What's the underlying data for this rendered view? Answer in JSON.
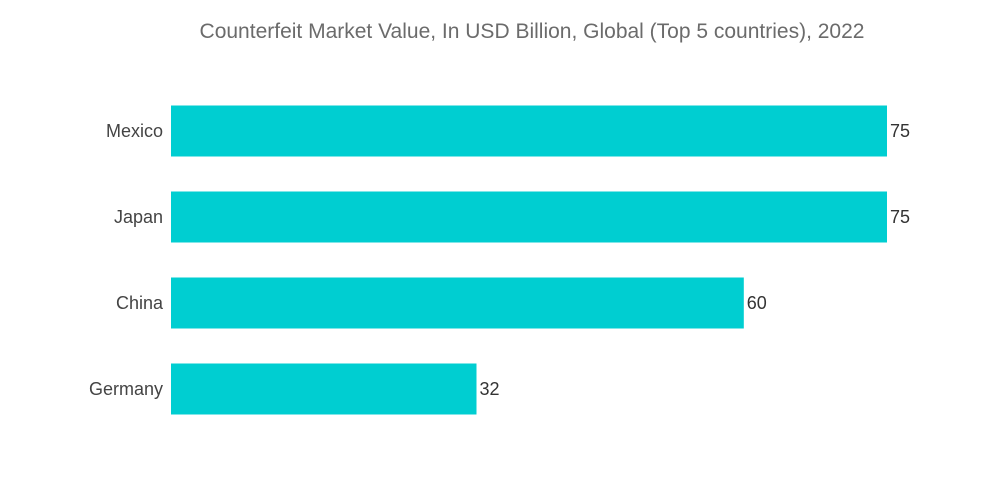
{
  "chart_data": {
    "type": "bar",
    "orientation": "horizontal",
    "title": "Counterfeit Market Value, In USD Billion, Global (Top 5 countries), 2022",
    "categories": [
      "Mexico",
      "Japan",
      "China",
      "Germany"
    ],
    "values": [
      75,
      75,
      60,
      32
    ],
    "xlabel": "",
    "ylabel": "",
    "xlim": [
      0,
      75
    ],
    "grid": false,
    "legend": "none",
    "bar_color": "#00CED1"
  }
}
